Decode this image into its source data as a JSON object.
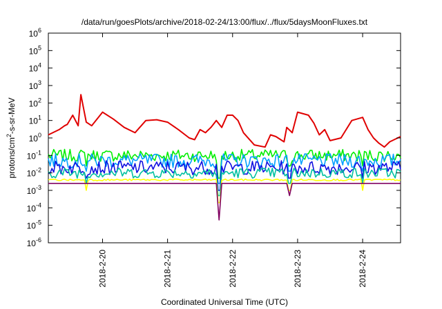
{
  "chart_data": {
    "type": "line",
    "title": "/data/run/goesPlots/archive/2018-02-24/13:00/flux/../flux/5daysMoonFluxes.txt",
    "xlabel": "Coordinated Universal Time (UTC)",
    "ylabel_parts": [
      "protons/cm",
      "2",
      "-s-sr-MeV"
    ],
    "y_scale": "log",
    "ylim": [
      1e-06,
      1000000.0
    ],
    "y_ticks": [
      {
        "base": "10",
        "exp": "-6",
        "value": 1e-06
      },
      {
        "base": "10",
        "exp": "-5",
        "value": 1e-05
      },
      {
        "base": "10",
        "exp": "-4",
        "value": 0.0001
      },
      {
        "base": "10",
        "exp": "-3",
        "value": 0.001
      },
      {
        "base": "10",
        "exp": "-2",
        "value": 0.01
      },
      {
        "base": "10",
        "exp": "-1",
        "value": 0.1
      },
      {
        "base": "10",
        "exp": "0",
        "value": 1
      },
      {
        "base": "10",
        "exp": "1",
        "value": 10
      },
      {
        "base": "10",
        "exp": "2",
        "value": 100
      },
      {
        "base": "10",
        "exp": "3",
        "value": 1000
      },
      {
        "base": "10",
        "exp": "4",
        "value": 10000
      },
      {
        "base": "10",
        "exp": "5",
        "value": 100000
      },
      {
        "base": "10",
        "exp": "6",
        "value": 1000000
      }
    ],
    "xlim": [
      "2018-02-19 04:00",
      "2018-02-24 14:00"
    ],
    "x_ticks": [
      {
        "label": "2018-2-20",
        "value": "2018-02-20 00:00"
      },
      {
        "label": "2018-2-21",
        "value": "2018-02-21 00:00"
      },
      {
        "label": "2018-2-22",
        "value": "2018-02-22 00:00"
      },
      {
        "label": "2018-2-23",
        "value": "2018-02-23 00:00"
      },
      {
        "label": "2018-2-24",
        "value": "2018-02-24 00:00"
      }
    ],
    "grid": false,
    "legend": "none",
    "series": [
      {
        "color": "#e00000",
        "x": [
          "2018-02-19 04:00",
          "2018-02-19 08:00",
          "2018-02-19 10:00",
          "2018-02-19 11:00",
          "2018-02-19 13:00",
          "2018-02-19 15:00",
          "2018-02-19 16:00",
          "2018-02-19 18:00",
          "2018-02-19 20:00",
          "2018-02-20 00:00",
          "2018-02-20 04:00",
          "2018-02-20 08:00",
          "2018-02-20 12:00",
          "2018-02-20 16:00",
          "2018-02-20 20:00",
          "2018-02-21 00:00",
          "2018-02-21 04:00",
          "2018-02-21 08:00",
          "2018-02-21 10:00",
          "2018-02-21 12:00",
          "2018-02-21 14:00",
          "2018-02-21 16:00",
          "2018-02-21 18:00",
          "2018-02-21 20:00",
          "2018-02-21 22:00",
          "2018-02-22 00:00",
          "2018-02-22 02:00",
          "2018-02-22 04:00",
          "2018-02-22 08:00",
          "2018-02-22 12:00",
          "2018-02-22 14:00",
          "2018-02-22 16:00",
          "2018-02-22 19:00",
          "2018-02-22 20:00",
          "2018-02-22 22:00",
          "2018-02-23 00:00",
          "2018-02-23 04:00",
          "2018-02-23 06:00",
          "2018-02-23 08:00",
          "2018-02-23 10:00",
          "2018-02-23 12:00",
          "2018-02-23 16:00",
          "2018-02-23 20:00",
          "2018-02-24 00:00",
          "2018-02-24 02:00",
          "2018-02-24 04:00",
          "2018-02-24 06:00",
          "2018-02-24 08:00",
          "2018-02-24 10:00",
          "2018-02-24 14:00"
        ],
        "y": [
          1.5,
          3,
          5,
          6,
          20,
          5,
          300,
          8,
          5,
          30,
          12,
          4,
          2,
          10,
          11,
          8,
          3,
          1,
          0.8,
          3,
          2,
          4,
          10,
          4,
          20,
          20,
          10,
          2,
          0.4,
          0.3,
          1.5,
          1.2,
          0.6,
          4,
          2,
          30,
          20,
          7,
          1.5,
          3,
          0.7,
          1,
          10,
          15,
          3,
          1,
          0.5,
          0.3,
          0.6,
          1.2
        ]
      },
      {
        "color": "#00ee00",
        "x": [
          "2018-02-19 04:00",
          "2018-02-24 14:00"
        ],
        "y": [
          0.1,
          0.1
        ]
      },
      {
        "color": "#00a0ff",
        "x": [
          "2018-02-19 04:00",
          "2018-02-24 14:00"
        ],
        "y": [
          0.05,
          0.05
        ]
      },
      {
        "color": "#1010e0",
        "x": [
          "2018-02-19 04:00",
          "2018-02-24 14:00"
        ],
        "y": [
          0.02,
          0.02
        ]
      },
      {
        "color": "#00c0a0",
        "x": [
          "2018-02-19 04:00",
          "2018-02-24 14:00"
        ],
        "y": [
          0.01,
          0.01
        ]
      },
      {
        "color": "#ffff00",
        "x": [
          "2018-02-19 04:00",
          "2018-02-24 14:00"
        ],
        "y": [
          0.004,
          0.004
        ]
      },
      {
        "color": "#800060",
        "x": [
          "2018-02-19 04:00",
          "2018-02-20 00:00",
          "2018-02-21 00:00",
          "2018-02-21 18:00",
          "2018-02-21 19:00",
          "2018-02-21 20:00",
          "2018-02-22 00:00",
          "2018-02-22 20:00",
          "2018-02-22 21:00",
          "2018-02-22 22:00",
          "2018-02-24 14:00"
        ],
        "y": [
          0.0025,
          0.0025,
          0.0025,
          0.0025,
          2e-05,
          0.0025,
          0.0025,
          0.0025,
          0.0005,
          0.0025,
          0.0025
        ]
      }
    ]
  }
}
